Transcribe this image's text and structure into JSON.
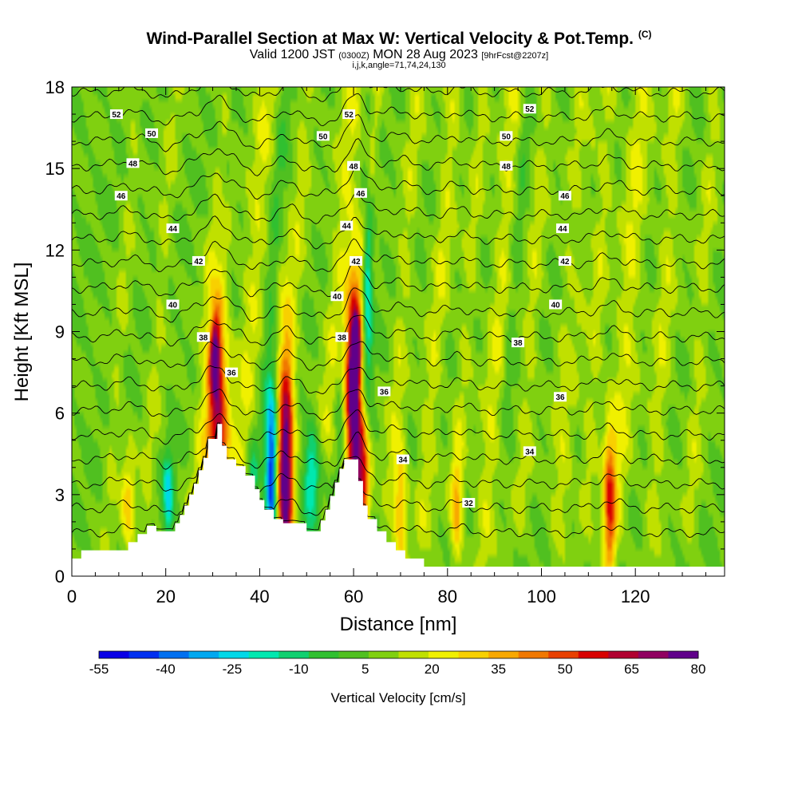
{
  "title": {
    "main": "Wind-Parallel Section at Max W: Vertical Velocity & Pot.Temp.",
    "copyright": "(C)",
    "valid_prefix": "Valid 1200 JST",
    "valid_utc": "(0300Z)",
    "valid_date": "MON 28 Aug 2023",
    "forecast": "[9hrFcst@2207z]",
    "index_line": "i,j,k,angle=71,74,24,130"
  },
  "chart_data": {
    "type": "heatmap",
    "xlabel": "Distance [nm]",
    "ylabel": "Height [Kft MSL]",
    "xlim": [
      0,
      139
    ],
    "ylim": [
      0,
      18
    ],
    "xticks": [
      "0",
      "20",
      "40",
      "60",
      "80",
      "100",
      "120"
    ],
    "yticks": [
      "0",
      "3",
      "6",
      "9",
      "12",
      "15",
      "18"
    ],
    "colorbar": {
      "label": "Vertical Velocity [cm/s]",
      "ticks": [
        "-55",
        "-40",
        "-25",
        "-10",
        "5",
        "20",
        "35",
        "50",
        "65",
        "80"
      ],
      "range": [
        -55,
        80
      ],
      "colors": [
        "#0a00e6",
        "#0030f0",
        "#0070f0",
        "#00a8f0",
        "#00d8e8",
        "#00e8b0",
        "#10d070",
        "#30c030",
        "#50c020",
        "#80d010",
        "#c0e000",
        "#f0f000",
        "#f8d000",
        "#f8a800",
        "#f07800",
        "#e84000",
        "#d80000",
        "#b00030",
        "#900060",
        "#60008a"
      ]
    },
    "terrain": [
      [
        0,
        0.65
      ],
      [
        2,
        0.65
      ],
      [
        2,
        0.95
      ],
      [
        12,
        0.95
      ],
      [
        12,
        1.25
      ],
      [
        14,
        1.25
      ],
      [
        14,
        1.55
      ],
      [
        16,
        1.55
      ],
      [
        16,
        1.85
      ],
      [
        18,
        1.85
      ],
      [
        18,
        1.65
      ],
      [
        22,
        1.65
      ],
      [
        22,
        1.95
      ],
      [
        23,
        1.95
      ],
      [
        23,
        2.25
      ],
      [
        24,
        2.25
      ],
      [
        24,
        2.6
      ],
      [
        25,
        2.6
      ],
      [
        25,
        3.0
      ],
      [
        26,
        3.0
      ],
      [
        26,
        3.4
      ],
      [
        27,
        3.4
      ],
      [
        27,
        3.9
      ],
      [
        28,
        3.9
      ],
      [
        28,
        4.35
      ],
      [
        29,
        4.35
      ],
      [
        29,
        5.05
      ],
      [
        31,
        5.05
      ],
      [
        31,
        5.6
      ],
      [
        32,
        5.6
      ],
      [
        32,
        4.8
      ],
      [
        33,
        4.8
      ],
      [
        33,
        4.3
      ],
      [
        35,
        4.3
      ],
      [
        35,
        4.05
      ],
      [
        37,
        4.05
      ],
      [
        37,
        3.7
      ],
      [
        39,
        3.7
      ],
      [
        39,
        3.2
      ],
      [
        40,
        3.2
      ],
      [
        40,
        2.8
      ],
      [
        41,
        2.8
      ],
      [
        41,
        2.45
      ],
      [
        43,
        2.45
      ],
      [
        43,
        2.1
      ],
      [
        45,
        2.1
      ],
      [
        45,
        1.95
      ],
      [
        50,
        1.95
      ],
      [
        50,
        1.65
      ],
      [
        53,
        1.65
      ],
      [
        53,
        2.05
      ],
      [
        54,
        2.05
      ],
      [
        54,
        2.45
      ],
      [
        55,
        2.45
      ],
      [
        55,
        2.95
      ],
      [
        56,
        2.95
      ],
      [
        56,
        3.45
      ],
      [
        57,
        3.45
      ],
      [
        57,
        3.95
      ],
      [
        58,
        3.95
      ],
      [
        58,
        4.3
      ],
      [
        61,
        4.3
      ],
      [
        61,
        3.5
      ],
      [
        62,
        3.5
      ],
      [
        62,
        2.6
      ],
      [
        63,
        2.6
      ],
      [
        63,
        2.1
      ],
      [
        65,
        2.1
      ],
      [
        65,
        1.65
      ],
      [
        67,
        1.65
      ],
      [
        67,
        1.25
      ],
      [
        69,
        1.25
      ],
      [
        69,
        0.95
      ],
      [
        71,
        0.95
      ],
      [
        71,
        0.65
      ],
      [
        75,
        0.65
      ],
      [
        75,
        0.35
      ],
      [
        139,
        0.35
      ]
    ],
    "updrafts": [
      [
        31,
        5.2,
        2.2,
        5.0,
        58
      ],
      [
        45.5,
        3.5,
        1.6,
        5.0,
        70
      ],
      [
        60,
        6.0,
        1.6,
        4.6,
        72
      ],
      [
        62,
        3.5,
        1.4,
        2.5,
        45
      ],
      [
        70,
        2.5,
        1.4,
        2.2,
        30
      ],
      [
        114.5,
        2.5,
        1.3,
        3.0,
        40
      ],
      [
        82,
        2.3,
        1.2,
        2.0,
        25
      ],
      [
        12,
        2.7,
        1.5,
        1.8,
        22
      ],
      [
        30.5,
        8.2,
        1.0,
        1.3,
        45
      ],
      [
        60.5,
        8.3,
        0.9,
        1.1,
        50
      ]
    ],
    "downdrafts": [
      [
        42.5,
        3.7,
        1.2,
        3.2,
        -55
      ],
      [
        20.5,
        3.0,
        1.1,
        1.6,
        -30
      ],
      [
        51,
        3.6,
        1.6,
        1.8,
        -30
      ],
      [
        38.5,
        3.5,
        1.0,
        1.6,
        -20
      ],
      [
        63,
        10.5,
        1.0,
        3.8,
        -30
      ],
      [
        57,
        6.0,
        1.2,
        2.5,
        -12
      ]
    ],
    "streaks": [
      [
        25.0,
        0,
        0.025,
        2.0,
        12
      ],
      [
        36.0,
        4,
        0.02,
        2.4,
        13
      ],
      [
        45.0,
        4,
        0.018,
        1.8,
        10
      ],
      [
        55.0,
        6,
        0.02,
        2.4,
        13
      ],
      [
        60.0,
        8,
        0.03,
        1.6,
        18
      ],
      [
        68.0,
        4,
        0.02,
        1.8,
        10
      ],
      [
        75.0,
        3,
        0.022,
        2.0,
        12
      ],
      [
        82.0,
        4,
        0.02,
        1.7,
        9
      ],
      [
        88.0,
        2,
        0.02,
        2.2,
        13
      ],
      [
        96.0,
        4,
        0.018,
        1.8,
        10
      ],
      [
        104.0,
        3,
        0.018,
        2.2,
        13
      ],
      [
        110.0,
        4,
        0.016,
        1.8,
        10
      ],
      [
        116.0,
        3,
        0.018,
        2.4,
        14
      ],
      [
        124.0,
        3,
        0.016,
        2.0,
        11
      ],
      [
        132.0,
        3,
        0.016,
        1.8,
        9
      ],
      [
        8.0,
        3,
        0.02,
        1.5,
        7
      ],
      [
        16.0,
        3,
        0.02,
        1.6,
        8
      ],
      [
        30.0,
        10,
        0.03,
        1.2,
        -10
      ],
      [
        41.0,
        7,
        0.02,
        1.3,
        -8
      ],
      [
        63.0,
        12,
        0.03,
        1.1,
        -12
      ],
      [
        93.0,
        8,
        0.02,
        1.3,
        -7
      ],
      [
        106.0,
        8,
        0.02,
        1.3,
        -7
      ]
    ],
    "theta": {
      "base_height": 1.6,
      "spacing": 0.9,
      "base_value": 32,
      "levels": 19
    },
    "contour_labels": [
      {
        "text": "52",
        "x": 9.5,
        "y": 17.0
      },
      {
        "text": "50",
        "x": 17.0,
        "y": 16.3
      },
      {
        "text": "48",
        "x": 13.0,
        "y": 15.2
      },
      {
        "text": "46",
        "x": 10.5,
        "y": 14.0
      },
      {
        "text": "44",
        "x": 21.5,
        "y": 12.8
      },
      {
        "text": "42",
        "x": 27.0,
        "y": 11.6
      },
      {
        "text": "40",
        "x": 21.5,
        "y": 10.0
      },
      {
        "text": "38",
        "x": 28.0,
        "y": 8.8
      },
      {
        "text": "36",
        "x": 34.0,
        "y": 7.5
      },
      {
        "text": "52",
        "x": 59.0,
        "y": 17.0
      },
      {
        "text": "50",
        "x": 53.5,
        "y": 16.2
      },
      {
        "text": "48",
        "x": 60.0,
        "y": 15.1
      },
      {
        "text": "46",
        "x": 61.5,
        "y": 14.1
      },
      {
        "text": "44",
        "x": 58.5,
        "y": 12.9
      },
      {
        "text": "42",
        "x": 60.5,
        "y": 11.6
      },
      {
        "text": "40",
        "x": 56.5,
        "y": 10.3
      },
      {
        "text": "38",
        "x": 57.5,
        "y": 8.8
      },
      {
        "text": "36",
        "x": 66.5,
        "y": 6.8
      },
      {
        "text": "34",
        "x": 70.5,
        "y": 4.3
      },
      {
        "text": "32",
        "x": 84.5,
        "y": 2.7
      },
      {
        "text": "52",
        "x": 97.5,
        "y": 17.2
      },
      {
        "text": "50",
        "x": 92.5,
        "y": 16.2
      },
      {
        "text": "48",
        "x": 92.5,
        "y": 15.1
      },
      {
        "text": "46",
        "x": 105.0,
        "y": 14.0
      },
      {
        "text": "44",
        "x": 104.5,
        "y": 12.8
      },
      {
        "text": "42",
        "x": 105.0,
        "y": 11.6
      },
      {
        "text": "40",
        "x": 103.0,
        "y": 10.0
      },
      {
        "text": "38",
        "x": 95.0,
        "y": 8.6
      },
      {
        "text": "36",
        "x": 104.0,
        "y": 6.6
      },
      {
        "text": "34",
        "x": 97.5,
        "y": 4.6
      }
    ]
  }
}
